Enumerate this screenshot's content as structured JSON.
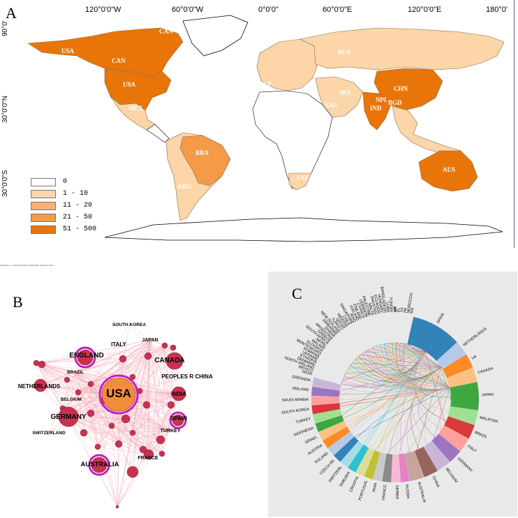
{
  "panel_a": {
    "letter": "A",
    "lon_labels": [
      "120°0'0\"W",
      "60°0'0\"W",
      "0°0'0\"",
      "60°0'0\"E",
      "120°0'0\"E",
      "180°0'"
    ],
    "lat_labels": [
      "90°0'",
      "30°0'0\"N",
      "30°0'0\"S"
    ],
    "legend": [
      {
        "label": "0",
        "color": "#ffffff"
      },
      {
        "label": "1 - 10",
        "color": "#fcd5a8"
      },
      {
        "label": "11 - 20",
        "color": "#f9b275"
      },
      {
        "label": "21 - 50",
        "color": "#f59a48"
      },
      {
        "label": "51 - 500",
        "color": "#e97508"
      }
    ],
    "country_codes": [
      "USA",
      "CAN",
      "USA",
      "BRA",
      "RUS",
      "CHN",
      "IND",
      "AUS",
      "SAU",
      "IRN",
      "ESP",
      "MEX",
      "ZAF",
      "BGD",
      "NPL",
      "ARG",
      "CAN"
    ]
  },
  "panel_b": {
    "letter": "B",
    "tiny_note": "CiteSpace, v. 5.8.R3 (64-bit) © 2003-2021 Chaomei Chen",
    "node_labels": [
      "USA",
      "ENGLAND",
      "CANADA",
      "GERMANY",
      "AUSTRALIA",
      "PEOPLES R CHINA",
      "INDIA",
      "SPAIN",
      "ITALY",
      "JAPAN",
      "SOUTH KOREA",
      "NETHERLANDS",
      "BRAZIL",
      "BELGIUM",
      "SWITZERLAND",
      "TURKEY",
      "FRANCE"
    ]
  },
  "panel_c": {
    "letter": "C",
    "labels": [
      "SPAIN",
      "NETHERLANDS",
      "UK",
      "CANADA",
      "JAPAN",
      "MALAYSIA",
      "BRAZIL",
      "ITALY",
      "GERMANY",
      "BELGIUM",
      "CHINA",
      "AUSTRALIA",
      "RUSSIA",
      "SERBIA",
      "FRANCE",
      "IRAN",
      "PORTUGAL",
      "CROATIA",
      "SWEDEN",
      "SWITZERL",
      "CZECH RE",
      "POLAND",
      "AUSTRIA",
      "ISRAEL",
      "INDONESIA",
      "TURKEY",
      "SOUTH KOREA",
      "SAUDI ARABIA",
      "IRELAND",
      "GRENADA",
      "INDIA",
      "MEXICO",
      "NORTH IRELAND",
      "DENMARK",
      "ETHIOPIA",
      "UKRAINE",
      "ROMANIA",
      "MONTENEGRO",
      "SLOVAKIA",
      "MALAWI",
      "NEPAL",
      "SOUTH AFRICA",
      "GREECE",
      "ARGENTINA",
      "GHANA",
      "ZIMBABWE",
      "NEW ZEALAND",
      "TURKEY",
      "QATAR",
      "NIGERIA",
      "CHILE",
      "SINGAPORE",
      "IRAQ",
      "ICELAND",
      "FINLAND",
      "CYPRUS",
      "LEBANON",
      "PALESTINE",
      "MALTA",
      "PAKISTAN",
      "ECUADOR",
      "HUNGARY",
      "BANGLADESH",
      "CUBA",
      "TUNISIA",
      "MA",
      "NY",
      "FL",
      "TX",
      "PA",
      "MOROCCO",
      "MD"
    ],
    "colors": [
      "#1f77b4",
      "#aec7e8",
      "#ff7f0e",
      "#ffbb78",
      "#2ca02c",
      "#98df8a",
      "#d62728",
      "#ff9896",
      "#9467bd",
      "#c5b0d5",
      "#8c564b",
      "#c49c94",
      "#e377c2",
      "#f7b6d2",
      "#7f7f7f",
      "#c7c7c7",
      "#bcbd22",
      "#dbdb8d",
      "#17becf",
      "#9edae5"
    ]
  }
}
